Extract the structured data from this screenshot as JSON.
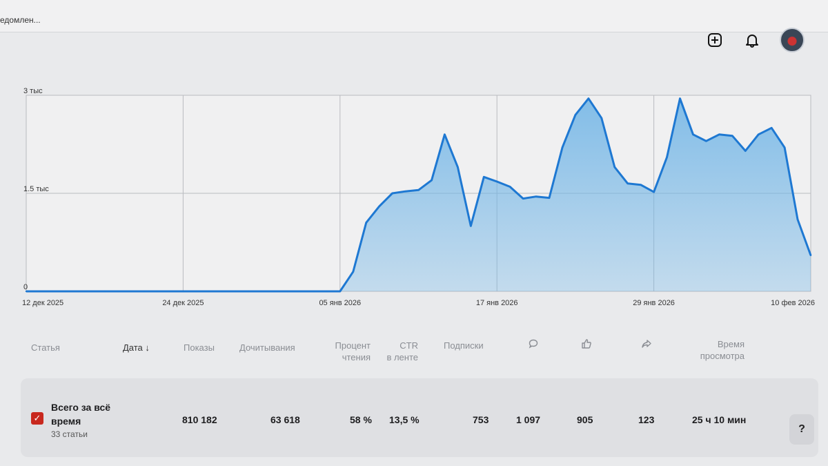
{
  "tab": {
    "label": "едомлен..."
  },
  "header_icons": [
    "plus-square-icon",
    "bell-icon",
    "avatar"
  ],
  "chart_data": {
    "type": "area",
    "y_ticks": [
      "3 тыс",
      "1.5 тыс",
      "0"
    ],
    "ylim": [
      0,
      3000
    ],
    "x_ticks": [
      "12 дек 2025",
      "24 дек 2025",
      "05 янв 2026",
      "17 янв 2026",
      "29 янв 2026",
      "10 фев 2026"
    ],
    "x": [
      "12 дек 2025",
      "13 дек 2025",
      "14 дек 2025",
      "15 дек 2025",
      "16 дек 2025",
      "17 дек 2025",
      "18 дек 2025",
      "19 дек 2025",
      "20 дек 2025",
      "21 дек 2025",
      "22 дек 2025",
      "23 дек 2025",
      "24 дек 2025",
      "25 дек 2025",
      "26 дек 2025",
      "27 дек 2025",
      "28 дек 2025",
      "29 дек 2025",
      "30 дек 2025",
      "31 дек 2025",
      "01 янв 2026",
      "02 янв 2026",
      "03 янв 2026",
      "04 янв 2026",
      "05 янв 2026",
      "06 янв 2026",
      "07 янв 2026",
      "08 янв 2026",
      "09 янв 2026",
      "10 янв 2026",
      "11 янв 2026",
      "12 янв 2026",
      "13 янв 2026",
      "14 янв 2026",
      "15 янв 2026",
      "16 янв 2026",
      "17 янв 2026",
      "18 янв 2026",
      "19 янв 2026",
      "20 янв 2026",
      "21 янв 2026",
      "22 янв 2026",
      "23 янв 2026",
      "24 янв 2026",
      "25 янв 2026",
      "26 янв 2026",
      "27 янв 2026",
      "28 янв 2026",
      "29 янв 2026",
      "30 янв 2026",
      "31 янв 2026",
      "01 фев 2026",
      "02 фев 2026",
      "03 фев 2026",
      "04 фев 2026",
      "05 фев 2026",
      "06 фев 2026",
      "07 фев 2026",
      "08 фев 2026",
      "09 фев 2026",
      "10 фев 2026"
    ],
    "values": [
      0,
      0,
      0,
      0,
      0,
      0,
      0,
      0,
      0,
      0,
      0,
      0,
      0,
      0,
      0,
      0,
      0,
      0,
      0,
      0,
      0,
      0,
      0,
      0,
      0,
      300,
      1050,
      1300,
      1500,
      1530,
      1550,
      1700,
      2400,
      1900,
      1000,
      1750,
      1680,
      1600,
      1420,
      1450,
      1430,
      2200,
      2700,
      2950,
      2650,
      1900,
      1650,
      1630,
      1520,
      2050,
      2950,
      2400,
      2300,
      2400,
      2380,
      2150,
      2400,
      2500,
      2200,
      1100,
      550
    ],
    "grid": true,
    "legend": "none",
    "color": "#1e78d2",
    "fill_color": "#6fb4e6"
  },
  "table": {
    "headers": [
      {
        "label": "Статья"
      },
      {
        "label": "Дата ↓"
      },
      {
        "label": "Показы"
      },
      {
        "label": "Дочитывания"
      },
      {
        "label": "Процент",
        "label2": "чтения"
      },
      {
        "label": "CTR",
        "label2": "в ленте"
      },
      {
        "label": "Подписки"
      },
      {
        "icon": "comment-icon"
      },
      {
        "icon": "like-icon"
      },
      {
        "icon": "share-icon"
      },
      {
        "label": "Время",
        "label2": "просмотра"
      }
    ],
    "total": {
      "title": "Всего за всё время",
      "subtitle": "33 статьи",
      "values": [
        "810 182",
        "63 618",
        "58 %",
        "13,5 %",
        "753",
        "1 097",
        "905",
        "123",
        "25 ч 10 мин"
      ]
    },
    "help_label": "?"
  },
  "colors": {
    "checkbox": "#c8281e",
    "line": "#1e78d2"
  }
}
